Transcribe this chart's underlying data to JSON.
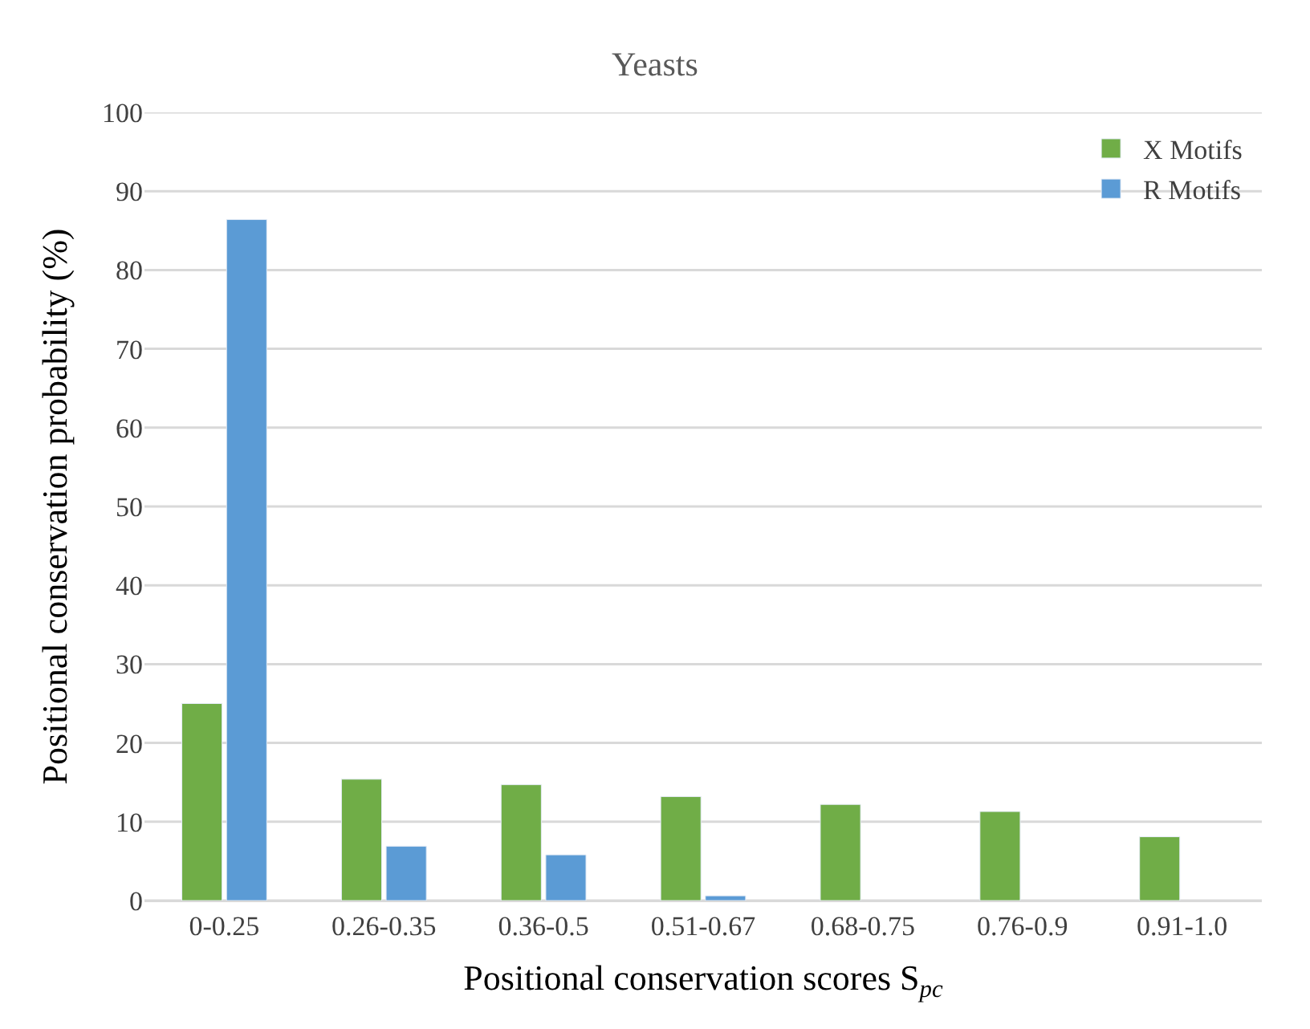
{
  "chart_data": {
    "type": "bar",
    "title": "Yeasts",
    "xlabel": "Positional conservation scores S$_{pc}$",
    "ylabel": "Positional conservation probability (%)",
    "categories": [
      "0-0.25",
      "0.26-0.35",
      "0.36-0.5",
      "0.51-0.67",
      "0.68-0.75",
      "0.76-0.9",
      "0.91-1.0"
    ],
    "series": [
      {
        "name": "X Motifs",
        "color": "#70ad47",
        "values": [
          25.0,
          15.4,
          14.7,
          13.2,
          12.2,
          11.3,
          8.1
        ]
      },
      {
        "name": "R Motifs",
        "color": "#5b9bd5",
        "values": [
          86.4,
          6.9,
          5.8,
          0.6,
          null,
          null,
          null
        ]
      }
    ],
    "ylim": [
      0,
      100
    ],
    "yticks": [
      0,
      10,
      20,
      30,
      40,
      50,
      60,
      70,
      80,
      90,
      100
    ],
    "grid": "y",
    "legend": "top right"
  }
}
